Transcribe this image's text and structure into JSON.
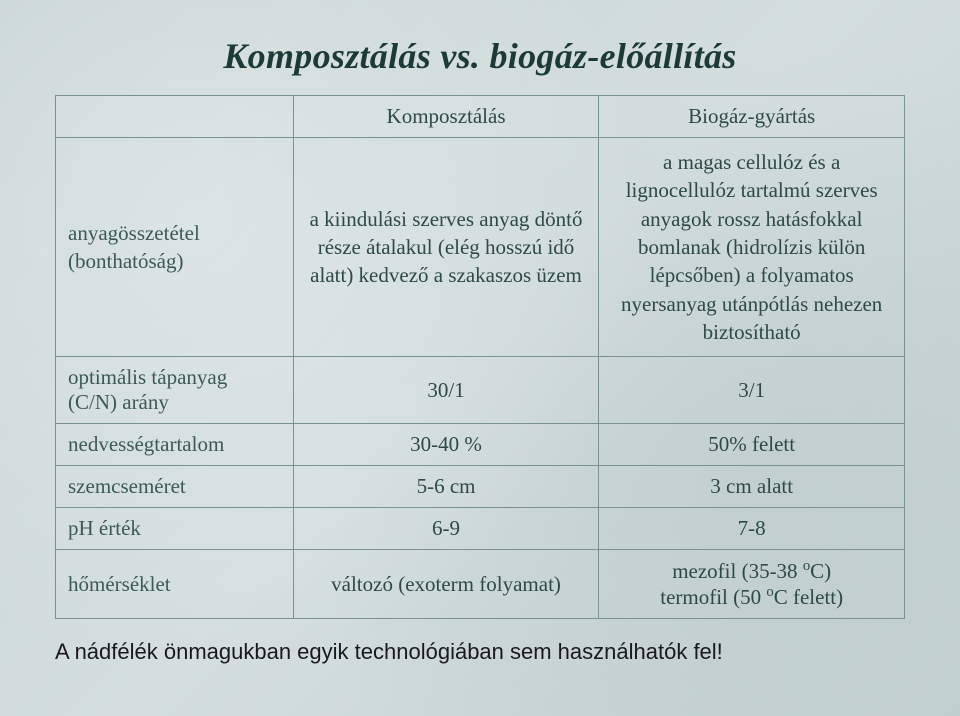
{
  "title": "Komposztálás vs. biogáz-előállítás",
  "headers": {
    "col1": "",
    "col2": "Komposztálás",
    "col3": "Biogáz-gyártás"
  },
  "rows": [
    {
      "label": "anyagösszetétel (bonthatóság)",
      "c2": "a kiindulási szerves anyag döntő része átalakul (elég hosszú idő alatt) kedvező a szakaszos üzem",
      "c3": "a magas cellulóz és a lignocellulóz tartalmú szerves anyagok rossz hatásfokkal bomlanak (hidrolízis külön lépcsőben) a folyamatos nyersanyag utánpótlás nehezen biztosítható"
    },
    {
      "label": "optimális tápanyag (C/N) arány",
      "c2": "30/1",
      "c3": "3/1"
    },
    {
      "label": "nedvességtartalom",
      "c2": "30-40 %",
      "c3": "50% felett"
    },
    {
      "label": "szemcseméret",
      "c2": "5-6 cm",
      "c3": "3 cm alatt"
    },
    {
      "label": "pH érték",
      "c2": "6-9",
      "c3": "7-8"
    },
    {
      "label": "hőmérséklet",
      "c2": "változó (exoterm folyamat)",
      "c3_html": "mezofil (35-38 <sup>o</sup>C)<br>termofil (50 <sup>o</sup>C felett)"
    }
  ],
  "footer": "A nádfélék önmagukban egyik technológiában sem használhatók fel!",
  "style": {
    "background_gradient": [
      "#c7d4d3",
      "#d4dede",
      "#c3d1d0"
    ],
    "border_color": "#7a9290",
    "title_color": "#1c3a38",
    "text_color": "#2d4a48",
    "footer_color": "#1a1a1a",
    "title_fontsize": 36,
    "cell_fontsize": 21,
    "footer_fontsize": 22,
    "col_widths_pct": [
      28,
      36,
      36
    ]
  }
}
